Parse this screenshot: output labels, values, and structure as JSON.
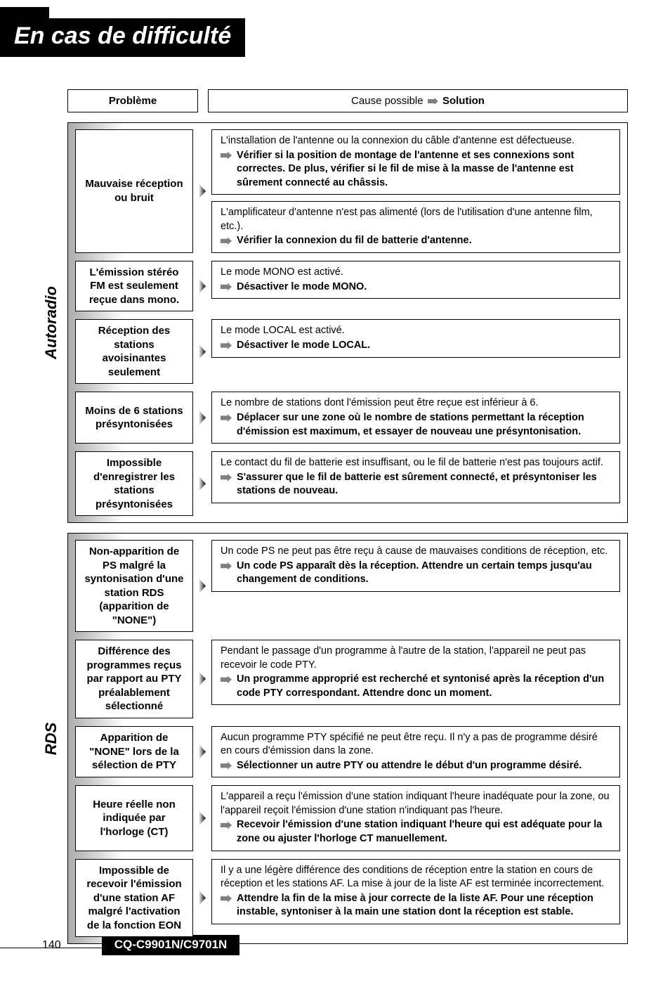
{
  "page": {
    "title": "En cas de difficulté",
    "number": "140",
    "model": "CQ-C9901N/C9701N"
  },
  "headers": {
    "problem": "Problème",
    "cause_prefix": "Cause possible",
    "solution_word": "Solution"
  },
  "groups": [
    {
      "tab": "Autoradio",
      "rows": [
        {
          "problem": "Mauvaise réception ou bruit",
          "solutions": [
            {
              "cause": "L'installation de l'antenne ou la connexion du câble d'antenne est défectueuse.",
              "fix": "Vérifier si la position de montage de l'antenne et ses connexions sont correctes. De plus, vérifier si le fil de mise à la masse de l'antenne est sûrement connecté au châssis."
            },
            {
              "cause": "L'amplificateur d'antenne n'est pas alimenté (lors de l'utilisation d'une antenne film, etc.).",
              "fix": "Vérifier la connexion du fil de batterie d'antenne."
            }
          ]
        },
        {
          "problem": "L'émission stéréo FM est seulement reçue dans mono.",
          "solutions": [
            {
              "cause": "Le mode MONO est activé.",
              "fix": "Désactiver le mode MONO."
            }
          ]
        },
        {
          "problem": "Réception des stations avoisinantes seulement",
          "solutions": [
            {
              "cause": "Le mode LOCAL est activé.",
              "fix": "Désactiver le mode LOCAL."
            }
          ]
        },
        {
          "problem": "Moins de 6 stations présyntonisées",
          "solutions": [
            {
              "cause": "Le nombre de stations dont l'émission peut être reçue est inférieur à 6.",
              "fix": "Déplacer sur une zone où le nombre de stations permettant la réception d'émission est maximum, et essayer de nouveau une présyntonisation."
            }
          ]
        },
        {
          "problem": "Impossible d'enregistrer les stations présyntonisées",
          "solutions": [
            {
              "cause": "Le contact du fil de batterie est insuffisant, ou le fil de batterie n'est pas toujours actif.",
              "fix": "S'assurer que le fil de batterie est sûrement connecté, et présyntoniser les stations de nouveau."
            }
          ]
        }
      ]
    },
    {
      "tab": "RDS",
      "rows": [
        {
          "problem": "Non-apparition de PS malgré la syntonisation d'une station RDS (apparition de \"NONE\")",
          "solutions": [
            {
              "cause": "Un code PS ne peut pas être reçu à cause de mauvaises conditions de réception, etc.",
              "fix": "Un code PS apparaît dès la réception. Attendre un certain temps jusqu'au changement de conditions."
            }
          ]
        },
        {
          "problem": "Différence des programmes reçus par rapport au PTY préalablement sélectionné",
          "solutions": [
            {
              "cause": "Pendant le passage d'un programme à l'autre de la station, l'appareil ne peut pas recevoir le code PTY.",
              "fix": "Un programme approprié est recherché et syntonisé après la réception d'un code PTY correspondant. Attendre donc un moment."
            }
          ]
        },
        {
          "problem": "Apparition de \"NONE\" lors de la sélection de PTY",
          "solutions": [
            {
              "cause": "Aucun programme PTY spécifié ne peut être reçu. Il n'y a pas de programme désiré en cours d'émission dans la zone.",
              "fix": "Sélectionner un autre PTY ou attendre le début d'un programme désiré."
            }
          ]
        },
        {
          "problem": "Heure réelle non indiquée par l'horloge (CT)",
          "solutions": [
            {
              "cause": "L'appareil a reçu l'émission d'une station indiquant l'heure inadéquate pour la zone, ou l'appareil reçoit l'émission d'une station n'indiquant pas l'heure.",
              "fix": "Recevoir l'émission d'une station indiquant l'heure qui est adéquate pour la zone ou ajuster l'horloge CT manuellement."
            }
          ]
        },
        {
          "problem": "Impossible de recevoir l'émission d'une station AF malgré l'activation de la fonction EON",
          "solutions": [
            {
              "cause": "Il y a une légère différence des conditions de réception entre la station en cours de réception et les stations AF. La mise à jour de la liste AF est terminée incorrectement.",
              "fix": "Attendre la fin de la mise à jour correcte de la liste AF. Pour une réception instable, syntoniser à la main une station dont la réception est stable."
            }
          ]
        }
      ]
    }
  ]
}
